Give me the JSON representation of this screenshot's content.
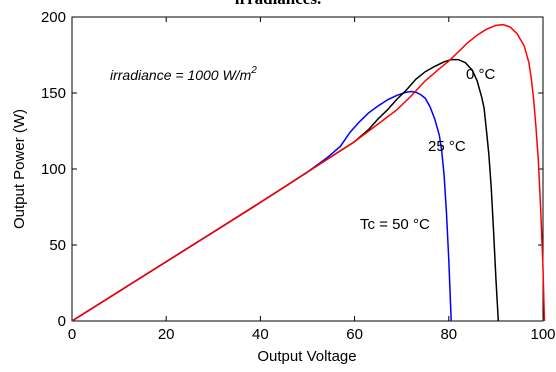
{
  "chart_data": {
    "type": "line",
    "title": "irradiances.",
    "xlabel": "Output Voltage",
    "ylabel": "Output Power (W)",
    "xlim": [
      0,
      100
    ],
    "ylim": [
      0,
      200
    ],
    "xticks": [
      0,
      20,
      40,
      60,
      80,
      100
    ],
    "yticks": [
      0,
      50,
      100,
      150,
      200
    ],
    "grid": false,
    "annotation": "irradiance = 1000 W/m",
    "annotation_superscript": "2",
    "series": [
      {
        "name": "Tc = 50 °C",
        "color": "#0000ff",
        "points": [
          [
            0,
            0
          ],
          [
            10,
            19.5
          ],
          [
            20,
            39
          ],
          [
            30,
            58.5
          ],
          [
            40,
            78
          ],
          [
            45,
            88
          ],
          [
            50,
            98
          ],
          [
            54,
            107
          ],
          [
            57,
            115
          ],
          [
            59,
            124
          ],
          [
            61,
            131
          ],
          [
            63,
            137
          ],
          [
            65,
            141.5
          ],
          [
            67,
            145.5
          ],
          [
            69,
            148.5
          ],
          [
            71,
            150.5
          ],
          [
            72,
            151
          ],
          [
            73,
            150.5
          ],
          [
            74,
            149
          ],
          [
            75,
            146.5
          ],
          [
            76,
            141
          ],
          [
            77,
            133
          ],
          [
            78,
            122
          ],
          [
            78.5,
            112
          ],
          [
            79,
            96
          ],
          [
            79.5,
            72
          ],
          [
            80,
            40
          ],
          [
            80.5,
            0
          ]
        ]
      },
      {
        "name": "25 °C",
        "color": "#000000",
        "points": [
          [
            0,
            0
          ],
          [
            10,
            19.5
          ],
          [
            20,
            39
          ],
          [
            30,
            58.5
          ],
          [
            40,
            78
          ],
          [
            45,
            88
          ],
          [
            50,
            98
          ],
          [
            55,
            108
          ],
          [
            60,
            118
          ],
          [
            63,
            126
          ],
          [
            65,
            133
          ],
          [
            67,
            139
          ],
          [
            69,
            146
          ],
          [
            71,
            152
          ],
          [
            73,
            159
          ],
          [
            75,
            164
          ],
          [
            77,
            167.5
          ],
          [
            79,
            170.5
          ],
          [
            80.5,
            172
          ],
          [
            82,
            172
          ],
          [
            83.5,
            170
          ],
          [
            85,
            165
          ],
          [
            86,
            158
          ],
          [
            87,
            147
          ],
          [
            87.5,
            140
          ],
          [
            88,
            125
          ],
          [
            88.5,
            110
          ],
          [
            89,
            88
          ],
          [
            89.5,
            60
          ],
          [
            90,
            28
          ],
          [
            90.5,
            0
          ]
        ]
      },
      {
        "name": "0 °C",
        "color": "#ff0000",
        "points": [
          [
            0,
            0
          ],
          [
            10,
            19.5
          ],
          [
            20,
            39
          ],
          [
            30,
            58.5
          ],
          [
            40,
            78
          ],
          [
            45,
            88
          ],
          [
            50,
            98
          ],
          [
            55,
            108
          ],
          [
            60,
            118
          ],
          [
            63,
            125
          ],
          [
            66,
            132
          ],
          [
            69,
            139
          ],
          [
            72,
            148
          ],
          [
            75,
            158
          ],
          [
            78,
            166
          ],
          [
            80,
            171
          ],
          [
            82,
            177
          ],
          [
            84,
            183
          ],
          [
            86,
            188
          ],
          [
            88,
            192
          ],
          [
            90,
            194.5
          ],
          [
            91.5,
            195
          ],
          [
            93,
            193.5
          ],
          [
            94.5,
            189
          ],
          [
            96,
            181
          ],
          [
            97,
            170
          ],
          [
            97.5,
            160
          ],
          [
            98,
            146
          ],
          [
            98.5,
            128
          ],
          [
            99,
            106
          ],
          [
            99.5,
            75
          ],
          [
            100,
            35
          ],
          [
            100.3,
            0
          ]
        ]
      }
    ],
    "series_labels": [
      "Tc = 50 °C",
      "25 °C",
      "0 °C"
    ]
  }
}
